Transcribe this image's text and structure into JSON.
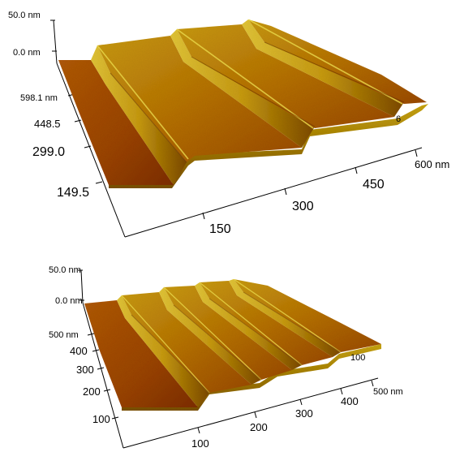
{
  "top_plot": {
    "z_max": "50.0 nm",
    "z_zero": "0.0 nm",
    "y_axis": [
      "598.1 nm",
      "448.5",
      "299.0",
      "149.5"
    ],
    "x_axis": [
      "150",
      "300",
      "450",
      "600 nm"
    ],
    "stray_label": "6"
  },
  "bottom_plot": {
    "z_max": "50.0 nm",
    "z_zero": "0.0 nm",
    "y_axis": [
      "500 nm",
      "400",
      "300",
      "200",
      "100"
    ],
    "x_axis": [
      "100",
      "200",
      "300",
      "400",
      "500 nm"
    ],
    "right_label": "100"
  },
  "colors": {
    "surface_dark": "#8a3208",
    "surface_mid": "#b5620f",
    "surface_light": "#d4aa18",
    "ridge_highlight": "#e8cf3a",
    "axis": "#000000"
  }
}
